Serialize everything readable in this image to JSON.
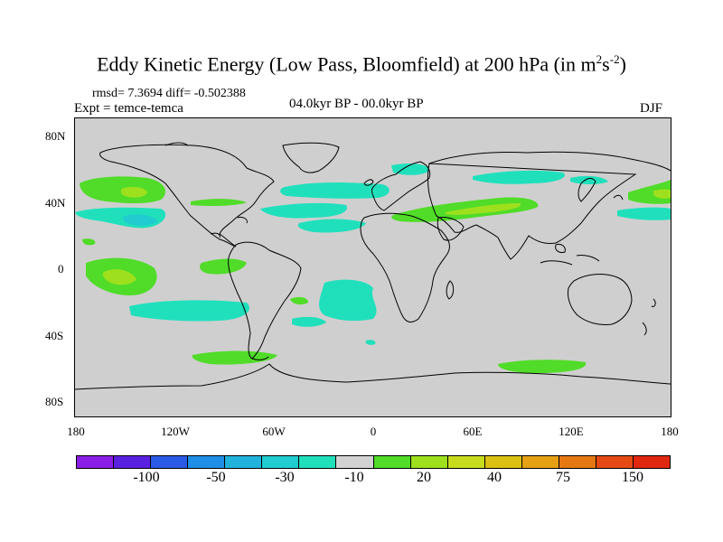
{
  "title": {
    "main": "Eddy Kinetic Energy (Low Pass, Bloomfield) at 200 hPa (in m",
    "sup1": "2",
    "mid": "s",
    "sup2": "-2",
    "end": ")"
  },
  "stats": "rmsd= 7.3694 diff= -0.502388",
  "experiment": "Expt = temce-temca",
  "period": "04.0kyr BP - 00.0kyr BP",
  "season": "DJF",
  "map": {
    "background_color": "#cfcfcf",
    "coastline_color": "#000000",
    "y_ticks": [
      "80N",
      "40N",
      "0",
      "40S",
      "80S"
    ],
    "x_ticks": [
      "180",
      "120W",
      "60W",
      "0",
      "60E",
      "120E",
      "180"
    ]
  },
  "colorbar": {
    "colors": [
      "#8a1ee6",
      "#5a20e0",
      "#2a5ae6",
      "#1e8ee6",
      "#20b2dc",
      "#20ccd0",
      "#20e0bc",
      "#d2d2d2",
      "#50dc28",
      "#9ee01e",
      "#c8dc1e",
      "#dcc014",
      "#e6a014",
      "#e67814",
      "#e64a14",
      "#e02810"
    ],
    "labels": [
      "-100",
      "-50",
      "-30",
      "-10",
      "20",
      "40",
      "75",
      "150"
    ]
  },
  "anomalies": [
    {
      "name": "north-pacific-positive",
      "level": "20"
    },
    {
      "name": "north-pacific-core",
      "level": "40"
    },
    {
      "name": "eurasian-jet-positive",
      "level": "20"
    },
    {
      "name": "eurasian-jet-core",
      "level": "40"
    },
    {
      "name": "north-atlantic-negative",
      "level": "-10"
    },
    {
      "name": "south-pacific-positive",
      "level": "20"
    },
    {
      "name": "south-atlantic-negative",
      "level": "-10"
    },
    {
      "name": "southern-ocean-positive",
      "level": "20"
    }
  ]
}
